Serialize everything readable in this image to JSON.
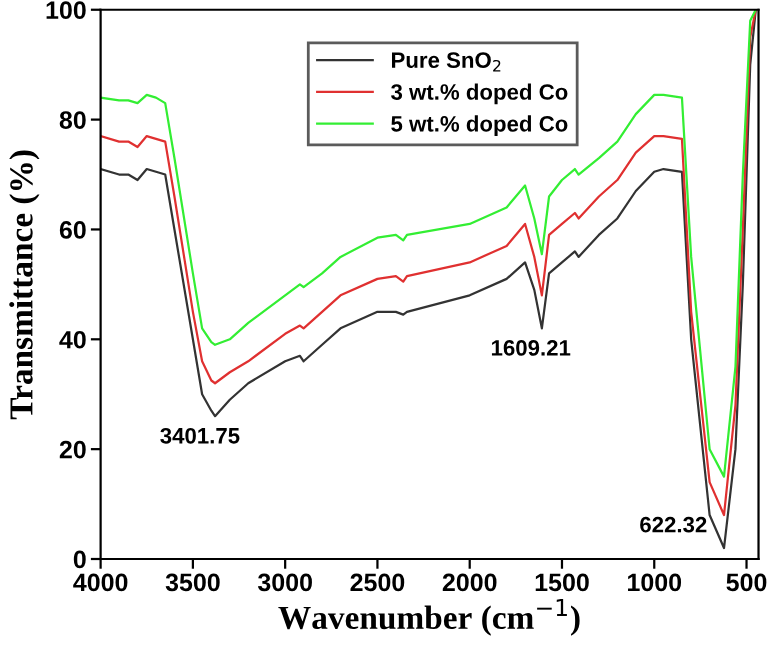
{
  "chart_data": {
    "type": "line",
    "xlabel": "Wavenumber (cm$^{−1}$)",
    "ylabel": "Transmittance (%)",
    "x": [
      4000,
      3900,
      3850,
      3800,
      3750,
      3700,
      3650,
      3600,
      3500,
      3450,
      3400,
      3380,
      3300,
      3200,
      3000,
      2920,
      2900,
      2800,
      2700,
      2500,
      2400,
      2360,
      2340,
      2000,
      1800,
      1700,
      1650,
      1609,
      1570,
      1500,
      1430,
      1410,
      1300,
      1200,
      1100,
      1000,
      950,
      850,
      800,
      700,
      622,
      560,
      520,
      480,
      450
    ],
    "series": [
      {
        "name": "Pure SnO$_{2}$",
        "color": "#333333",
        "values": [
          71,
          70,
          70,
          69,
          71,
          70.5,
          70,
          60,
          40,
          30,
          27,
          26,
          29,
          32,
          36,
          37,
          36,
          39,
          42,
          45,
          45,
          44.5,
          45,
          48,
          51,
          54,
          49,
          42,
          52,
          54,
          56,
          55,
          59,
          62,
          67,
          70.5,
          71,
          70.5,
          40,
          8,
          2,
          20,
          50,
          90,
          100
        ]
      },
      {
        "name": "3 wt.% doped Co",
        "color": "#e03030",
        "values": [
          77,
          76,
          76,
          75,
          77,
          76.5,
          76,
          66,
          45,
          36,
          32.5,
          32,
          34,
          36,
          41,
          42.5,
          42,
          45,
          48,
          51,
          51.5,
          50.5,
          51.5,
          54,
          57,
          61,
          55,
          48,
          59,
          61,
          63,
          62,
          66,
          69,
          74,
          77,
          77,
          76.5,
          45,
          14,
          8,
          28,
          60,
          95,
          100
        ]
      },
      {
        "name": "5 wt.% doped Co",
        "color": "#33ee33",
        "values": [
          84,
          83.5,
          83.5,
          83,
          84.5,
          84,
          83,
          73,
          52,
          42,
          39.5,
          39,
          40,
          43,
          48,
          50,
          49.5,
          52,
          55,
          58.5,
          59,
          58,
          59,
          61,
          64,
          68,
          62,
          55.5,
          66,
          69,
          71,
          70,
          73,
          76,
          81,
          84.5,
          84.5,
          84,
          55,
          20,
          15,
          35,
          70,
          98,
          100
        ]
      }
    ],
    "annotations": [
      {
        "text": "3401.75",
        "x": 3401.75,
        "y": 26
      },
      {
        "text": "1609.21",
        "x": 1609.21,
        "y": 42
      },
      {
        "text": "622.32",
        "x": 622.32,
        "y": 2
      }
    ],
    "xlim": [
      4000,
      435
    ],
    "xticks": [
      4000,
      3500,
      3000,
      2500,
      2000,
      1500,
      1000,
      500
    ],
    "ylim": [
      0,
      100
    ],
    "yticks": [
      0,
      20,
      40,
      60,
      80,
      100
    ],
    "legend": "top",
    "grid": false,
    "marker": "none",
    "line_style": "solid"
  }
}
